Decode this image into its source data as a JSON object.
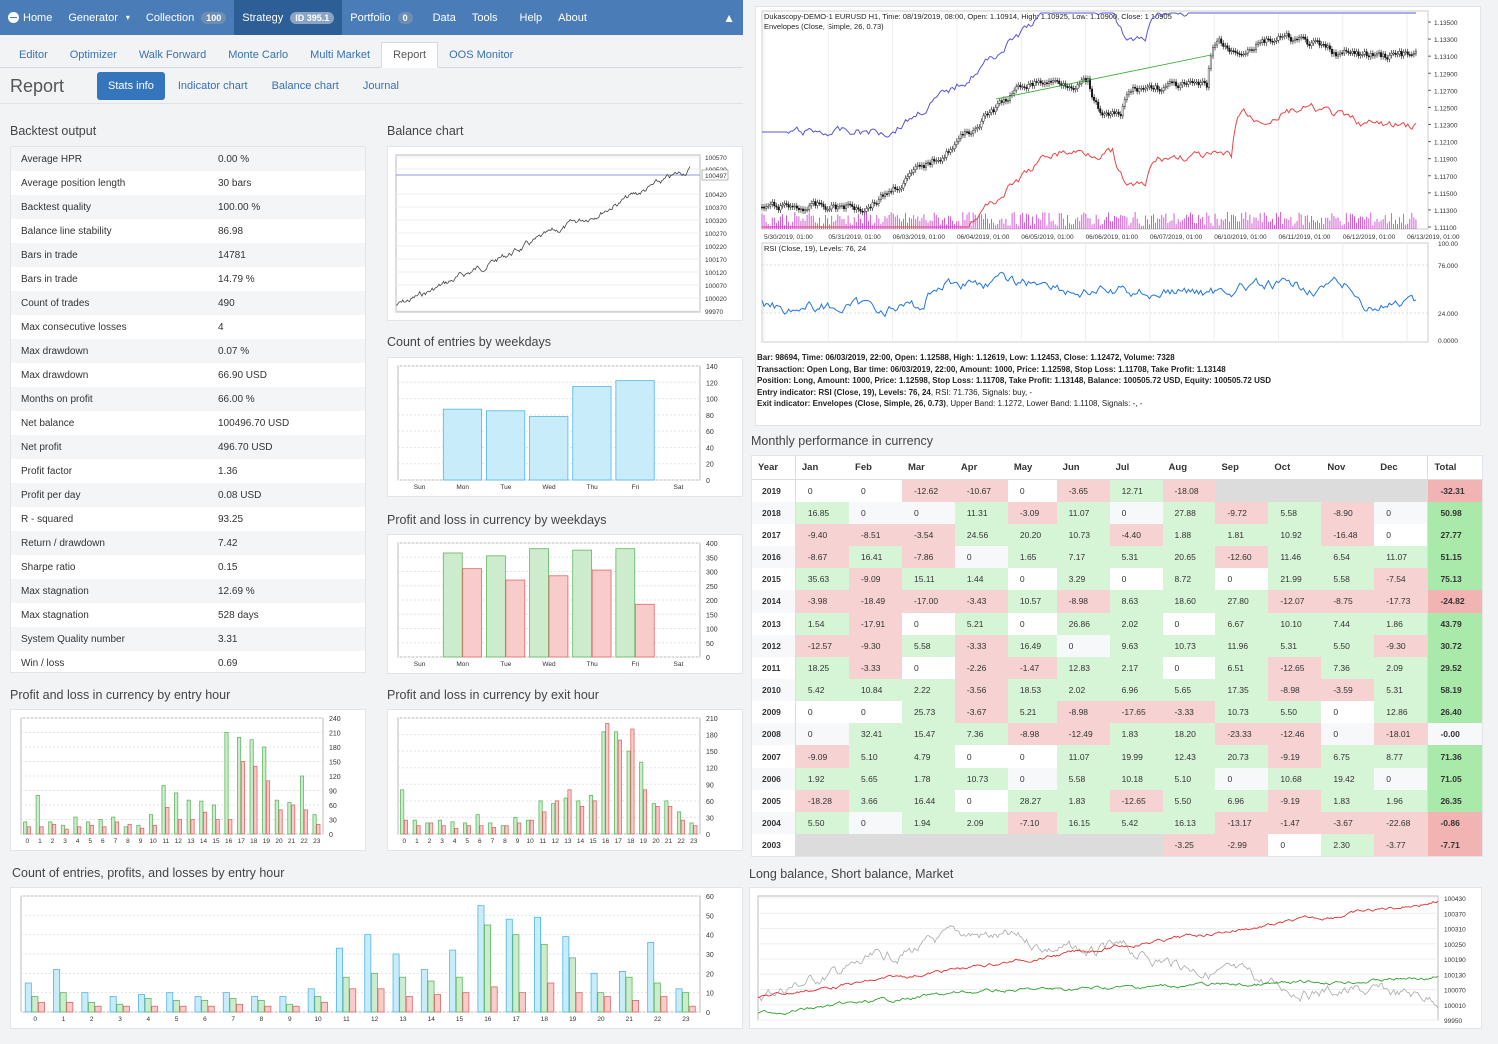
{
  "topnav": {
    "home": "Home",
    "generator": "Generator",
    "collection": "Collection",
    "collection_badge": "100",
    "strategy": "Strategy",
    "strategy_badge": "ID 395.1",
    "portfolio": "Portfolio",
    "portfolio_badge": "0",
    "data": "Data",
    "tools": "Tools",
    "help": "Help",
    "about": "About"
  },
  "subnav": [
    "Editor",
    "Optimizer",
    "Walk Forward",
    "Monte Carlo",
    "Multi Market",
    "Report",
    "OOS Monitor"
  ],
  "subnav_active": "Report",
  "page_title": "Report",
  "pills": [
    "Stats info",
    "Indicator chart",
    "Balance chart",
    "Journal"
  ],
  "sections": {
    "backtest": "Backtest output",
    "balance": "Balance chart",
    "count_weekdays": "Count of entries by weekdays",
    "pl_weekdays": "Profit and loss in currency by weekdays",
    "pl_entry_hour": "Profit and loss in currency by entry hour",
    "pl_exit_hour": "Profit and loss in currency by exit hour",
    "count_entry_hour": "Count of entries, profits, and losses by entry hour",
    "monthly": "Monthly performance in currency",
    "long_short": "Long balance, Short balance, Market"
  },
  "stats": [
    {
      "k": "Average HPR",
      "v": "0.00 %"
    },
    {
      "k": "Average position length",
      "v": "30 bars"
    },
    {
      "k": "Backtest quality",
      "v": "100.00 %"
    },
    {
      "k": "Balance line stability",
      "v": "86.98"
    },
    {
      "k": "Bars in trade",
      "v": "14781"
    },
    {
      "k": "Bars in trade",
      "v": "14.79 %"
    },
    {
      "k": "Count of trades",
      "v": "490"
    },
    {
      "k": "Max consecutive losses",
      "v": "4"
    },
    {
      "k": "Max drawdown",
      "v": "0.07 %"
    },
    {
      "k": "Max drawdown",
      "v": "66.90 USD"
    },
    {
      "k": "Months on profit",
      "v": "66.00 %"
    },
    {
      "k": "Net balance",
      "v": "100496.70 USD"
    },
    {
      "k": "Net profit",
      "v": "496.70 USD"
    },
    {
      "k": "Profit factor",
      "v": "1.36"
    },
    {
      "k": "Profit per day",
      "v": "0.08 USD"
    },
    {
      "k": "R - squared",
      "v": "93.25"
    },
    {
      "k": "Return / drawdown",
      "v": "7.42"
    },
    {
      "k": "Sharpe ratio",
      "v": "0.15"
    },
    {
      "k": "Max stagnation",
      "v": "12.69 %"
    },
    {
      "k": "Max stagnation",
      "v": "528 days"
    },
    {
      "k": "System Quality number",
      "v": "3.31"
    },
    {
      "k": "Win / loss",
      "v": "0.69"
    }
  ],
  "price_chart": {
    "header1": "Dukascopy-DEMO-1 EURUSD H1, Time: 08/19/2019, 08:00, Open: 1.10914, High: 1.10925, Low: 1.10900, Close: 1.10905",
    "header2": "Envelopes (Close, Simple, 26, 0.73)",
    "rsi_header": "RSI (Close, 19), Levels: 76, 24",
    "price_ticks": [
      "1.13500",
      "1.13300",
      "1.13100",
      "1.12900",
      "1.12700",
      "1.12500",
      "1.12300",
      "1.12100",
      "1.11900",
      "1.11700",
      "1.11500",
      "1.11300",
      "1.11100"
    ],
    "date_ticks": [
      "5/30/2019, 01:00",
      "05/31/2019, 01:00",
      "06/03/2019, 01:00",
      "06/04/2019, 01:00",
      "06/05/2019, 01:00",
      "06/06/2019, 01:00",
      "06/07/2019, 01:00",
      "06/10/2019, 01:00",
      "06/11/2019, 01:00",
      "06/12/2019, 01:00",
      "06/13/2019, 01:00"
    ],
    "rsi_ticks": [
      "100.00",
      "76.000",
      "24.000",
      "0.0000"
    ]
  },
  "price_info": {
    "l1": "Bar: 98694, Time: 06/03/2019, 22:00, Open: 1.12588, High: 1.12619, Low: 1.12453, Close: 1.12472, Volume: 7328",
    "l2": "Transaction: Open Long, Bar time: 06/03/2019, 22:00, Amount: 1000, Price: 1.12598, Stop Loss: 1.11708, Take Profit: 1.13148",
    "l3": "Position: Long, Amount: 1000, Price: 1.12598, Stop Loss: 1.11708, Take Profit: 1.13148, Balance: 100505.72 USD, Equity: 100505.72 USD",
    "l4a": "Entry indicator: RSI (Close, 19), Levels: 76, 24",
    "l4b": ", RSI: 71.736, Signals: buy, -",
    "l5a": "Exit indicator: Envelopes (Close, Simple, 26, 0.73)",
    "l5b": ", Upper Band: 1.1272, Lower Band: 1.1108, Signals: -, -"
  },
  "monthly": {
    "headers": [
      "Year",
      "Jan",
      "Feb",
      "Mar",
      "Apr",
      "May",
      "Jun",
      "Jul",
      "Aug",
      "Sep",
      "Oct",
      "Nov",
      "Dec",
      "Total"
    ],
    "rows": [
      [
        "2019",
        "0",
        "0",
        "-12.62",
        "-10.67",
        "0",
        "-3.65",
        "12.71",
        "-18.08",
        "",
        "",
        "",
        "",
        "-32.31"
      ],
      [
        "2018",
        "16.85",
        "0",
        "0",
        "11.31",
        "-3.09",
        "11.07",
        "0",
        "27.88",
        "-9.72",
        "5.58",
        "-8.90",
        "0",
        "50.98"
      ],
      [
        "2017",
        "-9.40",
        "-8.51",
        "-3.54",
        "24.56",
        "20.20",
        "10.73",
        "-4.40",
        "1.88",
        "1.81",
        "10.92",
        "-16.48",
        "0",
        "27.77"
      ],
      [
        "2016",
        "-8.67",
        "16.41",
        "-7.86",
        "0",
        "1.65",
        "7.17",
        "5.31",
        "20.65",
        "-12.60",
        "11.46",
        "6.54",
        "11.07",
        "51.15"
      ],
      [
        "2015",
        "35.63",
        "-9.09",
        "15.11",
        "1.44",
        "0",
        "3.29",
        "0",
        "8.72",
        "0",
        "21.99",
        "5.58",
        "-7.54",
        "75.13"
      ],
      [
        "2014",
        "-3.98",
        "-18.49",
        "-17.00",
        "-3.43",
        "10.57",
        "-8.98",
        "8.63",
        "18.60",
        "27.80",
        "-12.07",
        "-8.75",
        "-17.73",
        "-24.82"
      ],
      [
        "2013",
        "1.54",
        "-17.91",
        "0",
        "5.21",
        "0",
        "26.86",
        "2.02",
        "0",
        "6.67",
        "10.10",
        "7.44",
        "1.86",
        "43.79"
      ],
      [
        "2012",
        "-12.57",
        "-9.30",
        "5.58",
        "-3.33",
        "16.49",
        "0",
        "9.63",
        "10.73",
        "11.96",
        "5.31",
        "5.50",
        "-9.30",
        "30.72"
      ],
      [
        "2011",
        "18.25",
        "-3.33",
        "0",
        "-2.26",
        "-1.47",
        "12.83",
        "2.17",
        "0",
        "6.51",
        "-12.65",
        "7.36",
        "2.09",
        "29.52"
      ],
      [
        "2010",
        "5.42",
        "10.84",
        "2.22",
        "-3.56",
        "18.53",
        "2.02",
        "6.96",
        "5.65",
        "17.35",
        "-8.98",
        "-3.59",
        "5.31",
        "58.19"
      ],
      [
        "2009",
        "0",
        "0",
        "25.73",
        "-3.67",
        "5.21",
        "-8.98",
        "-17.65",
        "-3.33",
        "10.73",
        "5.50",
        "0",
        "12.86",
        "26.40"
      ],
      [
        "2008",
        "0",
        "32.41",
        "15.47",
        "7.36",
        "-8.98",
        "-12.49",
        "1.83",
        "18.20",
        "-23.33",
        "-12.46",
        "0",
        "-18.01",
        "-0.00"
      ],
      [
        "2007",
        "-9.09",
        "5.10",
        "4.79",
        "0",
        "0",
        "11.07",
        "19.99",
        "12.43",
        "20.73",
        "-9.19",
        "6.75",
        "8.77",
        "71.36"
      ],
      [
        "2006",
        "1.92",
        "5.65",
        "1.78",
        "10.73",
        "0",
        "5.58",
        "10.18",
        "5.10",
        "0",
        "10.68",
        "19.42",
        "0",
        "71.05"
      ],
      [
        "2005",
        "-18.28",
        "3.66",
        "16.44",
        "0",
        "28.27",
        "1.83",
        "-12.65",
        "5.50",
        "6.96",
        "-9.19",
        "1.83",
        "1.96",
        "26.35"
      ],
      [
        "2004",
        "5.50",
        "0",
        "1.94",
        "2.09",
        "-7.10",
        "16.15",
        "5.42",
        "16.13",
        "-13.17",
        "-1.47",
        "-3.67",
        "-22.68",
        "-0.86"
      ],
      [
        "2003",
        "",
        "",
        "",
        "",
        "",
        "",
        "",
        "-3.25",
        "-2.99",
        "0",
        "2.30",
        "-3.77",
        "-7.71"
      ]
    ]
  },
  "chart_data": [
    {
      "type": "line",
      "name": "balance",
      "y_ticks": [
        "100570",
        "100520",
        "100497",
        "100420",
        "100370",
        "100320",
        "100270",
        "100220",
        "100170",
        "100120",
        "100070",
        "100020",
        "99970"
      ],
      "ylim": [
        99970,
        100570
      ],
      "current": "100497"
    },
    {
      "type": "bar",
      "name": "count_weekdays",
      "categories": [
        "Sun",
        "Mon",
        "Tue",
        "Wed",
        "Thu",
        "Fri",
        "Sat"
      ],
      "values": [
        0,
        87,
        85,
        78,
        115,
        122,
        0
      ],
      "ylim": [
        0,
        140
      ],
      "y_ticks": [
        "140",
        "120",
        "100",
        "80",
        "60",
        "40",
        "20",
        "0"
      ]
    },
    {
      "type": "bar",
      "name": "pl_weekdays",
      "categories": [
        "Sun",
        "Mon",
        "Tue",
        "Wed",
        "Thu",
        "Fri",
        "Sat"
      ],
      "series": [
        {
          "values": [
            0,
            365,
            355,
            380,
            375,
            380,
            0
          ],
          "color": "#7ec87e"
        },
        {
          "values": [
            0,
            310,
            270,
            285,
            305,
            185,
            0
          ],
          "color": "#e88c8c"
        }
      ],
      "ylim": [
        0,
        400
      ],
      "y_ticks": [
        "400",
        "350",
        "300",
        "250",
        "200",
        "150",
        "100",
        "50",
        "0"
      ]
    },
    {
      "type": "bar",
      "name": "pl_entry_hour",
      "categories": [
        "0",
        "1",
        "2",
        "3",
        "4",
        "5",
        "6",
        "7",
        "8",
        "9",
        "10",
        "11",
        "12",
        "13",
        "14",
        "15",
        "16",
        "17",
        "18",
        "19",
        "20",
        "21",
        "22",
        "23"
      ],
      "series": [
        {
          "values": [
            25,
            80,
            25,
            18,
            35,
            25,
            30,
            35,
            15,
            18,
            40,
            100,
            85,
            70,
            68,
            60,
            210,
            200,
            195,
            180,
            70,
            65,
            120,
            40
          ],
          "color": "#7ec87e"
        },
        {
          "values": [
            15,
            15,
            20,
            10,
            15,
            18,
            15,
            25,
            20,
            12,
            18,
            55,
            30,
            30,
            45,
            30,
            30,
            150,
            140,
            110,
            50,
            60,
            50,
            20
          ],
          "color": "#e88c8c"
        }
      ],
      "ylim": [
        0,
        240
      ],
      "y_ticks": [
        "240",
        "210",
        "180",
        "150",
        "120",
        "90",
        "60",
        "30",
        "0"
      ]
    },
    {
      "type": "bar",
      "name": "pl_exit_hour",
      "categories": [
        "0",
        "1",
        "2",
        "3",
        "4",
        "5",
        "6",
        "7",
        "8",
        "9",
        "10",
        "11",
        "12",
        "13",
        "14",
        "15",
        "16",
        "17",
        "18",
        "19",
        "20",
        "21",
        "22",
        "23"
      ],
      "series": [
        {
          "values": [
            80,
            25,
            20,
            25,
            22,
            20,
            35,
            20,
            15,
            30,
            25,
            60,
            55,
            65,
            60,
            70,
            185,
            185,
            150,
            130,
            55,
            60,
            40,
            20
          ],
          "color": "#7ec87e"
        },
        {
          "values": [
            25,
            15,
            20,
            15,
            10,
            15,
            15,
            12,
            15,
            20,
            25,
            40,
            60,
            80,
            50,
            60,
            200,
            170,
            190,
            80,
            50,
            50,
            25,
            15
          ],
          "color": "#e88c8c"
        }
      ],
      "ylim": [
        0,
        210
      ],
      "y_ticks": [
        "210",
        "180",
        "150",
        "120",
        "90",
        "60",
        "30",
        "0"
      ]
    },
    {
      "type": "bar",
      "name": "count_entry_hour",
      "categories": [
        "0",
        "1",
        "2",
        "3",
        "4",
        "5",
        "6",
        "7",
        "8",
        "9",
        "10",
        "11",
        "12",
        "13",
        "14",
        "15",
        "16",
        "17",
        "18",
        "19",
        "20",
        "21",
        "22",
        "23"
      ],
      "series": [
        {
          "values": [
            15,
            22,
            10,
            8,
            9,
            10,
            8,
            10,
            8,
            8,
            12,
            33,
            40,
            30,
            22,
            32,
            55,
            48,
            49,
            39,
            20,
            21,
            36,
            12
          ],
          "color": "#b5e2f5"
        },
        {
          "values": [
            8,
            10,
            5,
            4,
            7,
            6,
            6,
            7,
            6,
            4,
            8,
            18,
            20,
            18,
            16,
            18,
            45,
            40,
            35,
            28,
            10,
            18,
            15,
            10
          ],
          "color": "#8cd08c"
        },
        {
          "values": [
            5,
            5,
            3,
            3,
            3,
            3,
            3,
            4,
            3,
            3,
            5,
            12,
            12,
            8,
            9,
            10,
            13,
            10,
            15,
            10,
            8,
            6,
            8,
            3
          ],
          "color": "#e88c8c"
        }
      ],
      "ylim": [
        0,
        60
      ],
      "y_ticks": [
        "60",
        "50",
        "40",
        "30",
        "20",
        "10",
        "0"
      ]
    },
    {
      "type": "line",
      "name": "long_short_market",
      "y_ticks": [
        "100430",
        "100370",
        "100310",
        "100250",
        "100190",
        "100130",
        "100070",
        "100010",
        "99950"
      ],
      "ylim": [
        99950,
        100430
      ]
    }
  ]
}
